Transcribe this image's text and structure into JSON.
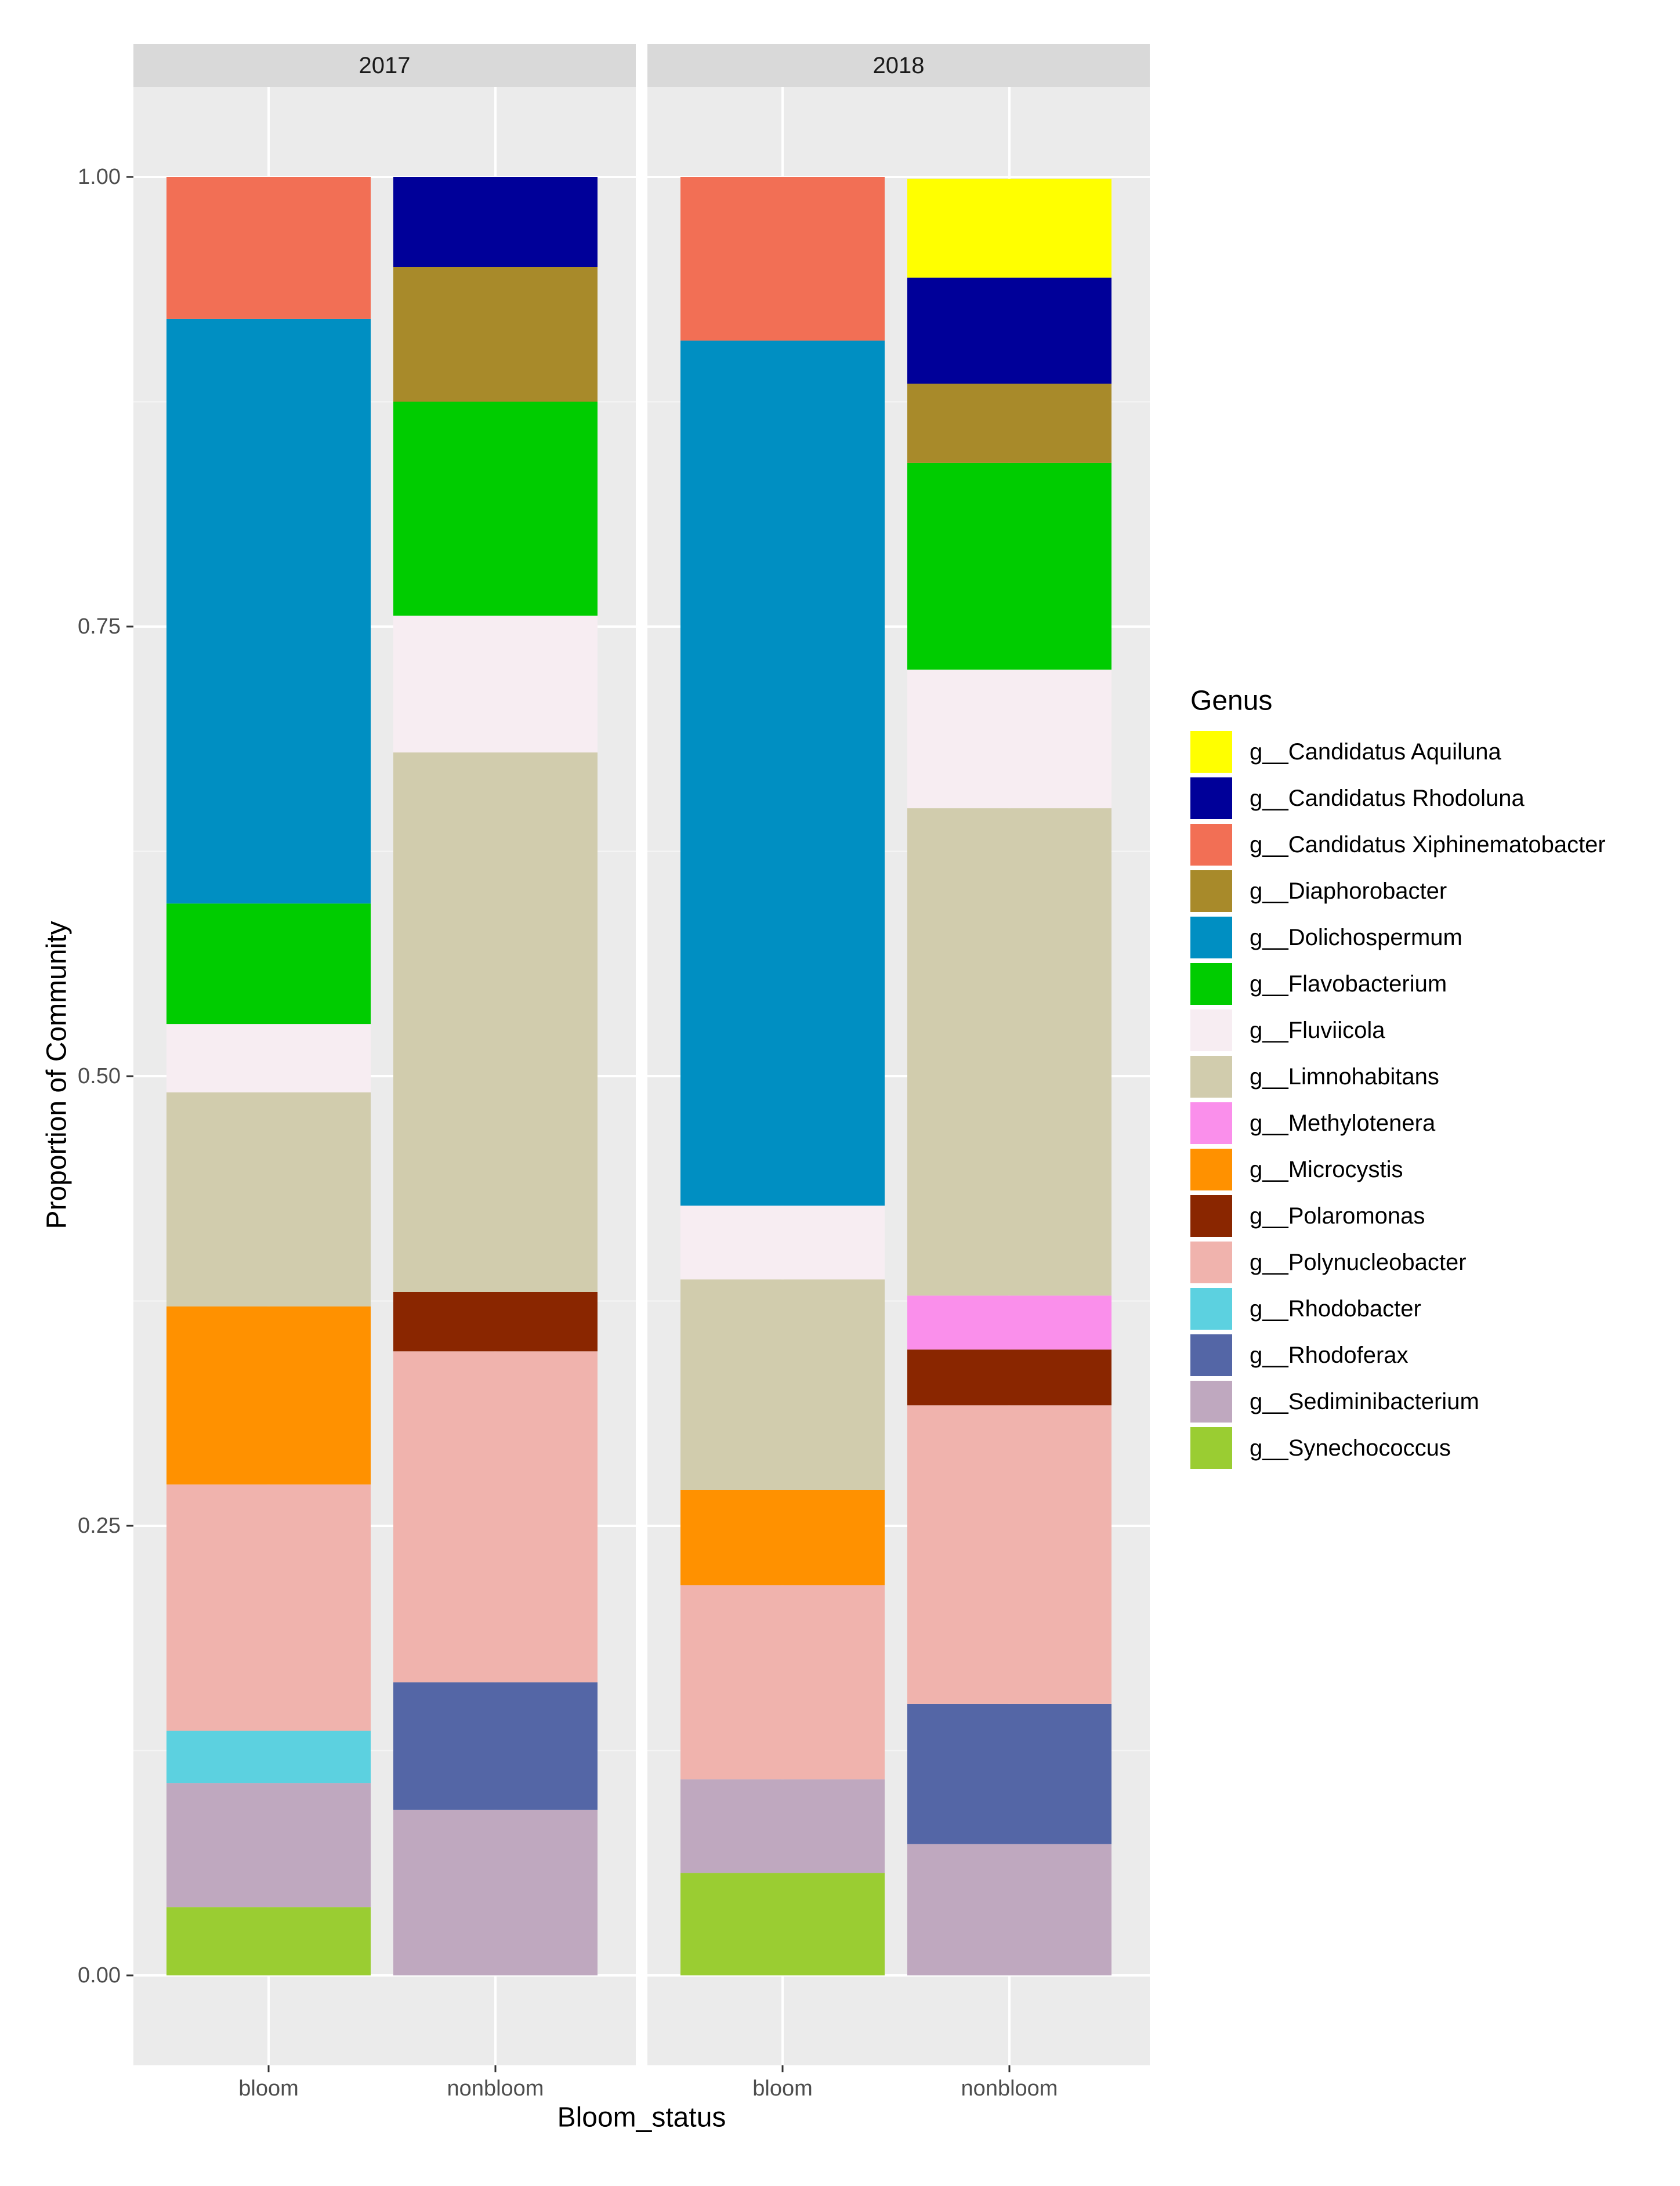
{
  "chart_data": {
    "type": "bar",
    "stacked": true,
    "faceted_by": "year",
    "xlabel": "Bloom_status",
    "ylabel": "Proportion of Community",
    "ylim": [
      0,
      1
    ],
    "y_ticks": [
      "0.00",
      "0.25",
      "0.50",
      "0.75",
      "1.00"
    ],
    "y_tick_values": [
      0,
      0.25,
      0.5,
      0.75,
      1.0
    ],
    "categories": [
      "bloom",
      "nonbloom"
    ],
    "legend": {
      "title": "Genus",
      "placement": "right",
      "entries": [
        {
          "label": "g__Candidatus Aquiluna",
          "color": "#FFFF00"
        },
        {
          "label": "g__Candidatus Rhodoluna",
          "color": "#000099"
        },
        {
          "label": "g__Candidatus Xiphinematobacter",
          "color": "#F26F55"
        },
        {
          "label": "g__Diaphorobacter",
          "color": "#A88A2A"
        },
        {
          "label": "g__Dolichospermum",
          "color": "#008FC2"
        },
        {
          "label": "g__Flavobacterium",
          "color": "#00CC00"
        },
        {
          "label": "g__Fluviicola",
          "color": "#F7EDF2"
        },
        {
          "label": "g__Limnohabitans",
          "color": "#D1CCAD"
        },
        {
          "label": "g__Methylotenera",
          "color": "#FA8FEB"
        },
        {
          "label": "g__Microcystis",
          "color": "#FF9100"
        },
        {
          "label": "g__Polaromonas",
          "color": "#8A2600"
        },
        {
          "label": "g__Polynucleobacter",
          "color": "#F0B3AD"
        },
        {
          "label": "g__Rhodobacter",
          "color": "#5CD1E0"
        },
        {
          "label": "g__Rhodoferax",
          "color": "#5466A6"
        },
        {
          "label": "g__Sediminibacterium",
          "color": "#BFA8BF"
        },
        {
          "label": "g__Synechococcus",
          "color": "#9ACD32"
        }
      ]
    },
    "facets": [
      {
        "label": "2017",
        "bars": [
          {
            "category": "bloom",
            "segments": [
              {
                "genus": "g__Synechococcus",
                "value": 0.038
              },
              {
                "genus": "g__Sediminibacterium",
                "value": 0.069
              },
              {
                "genus": "g__Rhodobacter",
                "value": 0.029
              },
              {
                "genus": "g__Polynucleobacter",
                "value": 0.137
              },
              {
                "genus": "g__Microcystis",
                "value": 0.099
              },
              {
                "genus": "g__Limnohabitans",
                "value": 0.119
              },
              {
                "genus": "g__Fluviicola",
                "value": 0.038
              },
              {
                "genus": "g__Flavobacterium",
                "value": 0.067
              },
              {
                "genus": "g__Dolichospermum",
                "value": 0.325
              },
              {
                "genus": "g__Candidatus Xiphinematobacter",
                "value": 0.079
              }
            ]
          },
          {
            "category": "nonbloom",
            "segments": [
              {
                "genus": "g__Sediminibacterium",
                "value": 0.092
              },
              {
                "genus": "g__Rhodoferax",
                "value": 0.071
              },
              {
                "genus": "g__Polynucleobacter",
                "value": 0.184
              },
              {
                "genus": "g__Polaromonas",
                "value": 0.033
              },
              {
                "genus": "g__Limnohabitans",
                "value": 0.3
              },
              {
                "genus": "g__Fluviicola",
                "value": 0.076
              },
              {
                "genus": "g__Flavobacterium",
                "value": 0.119
              },
              {
                "genus": "g__Diaphorobacter",
                "value": 0.075
              },
              {
                "genus": "g__Candidatus Rhodoluna",
                "value": 0.05
              }
            ]
          }
        ]
      },
      {
        "label": "2018",
        "bars": [
          {
            "category": "bloom",
            "segments": [
              {
                "genus": "g__Synechococcus",
                "value": 0.057
              },
              {
                "genus": "g__Sediminibacterium",
                "value": 0.052
              },
              {
                "genus": "g__Polynucleobacter",
                "value": 0.108
              },
              {
                "genus": "g__Microcystis",
                "value": 0.053
              },
              {
                "genus": "g__Limnohabitans",
                "value": 0.117
              },
              {
                "genus": "g__Fluviicola",
                "value": 0.041
              },
              {
                "genus": "g__Dolichospermum",
                "value": 0.481
              },
              {
                "genus": "g__Candidatus Xiphinematobacter",
                "value": 0.091
              }
            ]
          },
          {
            "category": "nonbloom",
            "segments": [
              {
                "genus": "g__Sediminibacterium",
                "value": 0.073
              },
              {
                "genus": "g__Rhodoferax",
                "value": 0.078
              },
              {
                "genus": "g__Polynucleobacter",
                "value": 0.166
              },
              {
                "genus": "g__Polaromonas",
                "value": 0.031
              },
              {
                "genus": "g__Methylotenera",
                "value": 0.03
              },
              {
                "genus": "g__Limnohabitans",
                "value": 0.271
              },
              {
                "genus": "g__Fluviicola",
                "value": 0.077
              },
              {
                "genus": "g__Flavobacterium",
                "value": 0.115
              },
              {
                "genus": "g__Diaphorobacter",
                "value": 0.044
              },
              {
                "genus": "g__Candidatus Rhodoluna",
                "value": 0.059
              },
              {
                "genus": "g__Candidatus Aquiluna",
                "value": 0.055
              }
            ]
          }
        ]
      }
    ]
  }
}
